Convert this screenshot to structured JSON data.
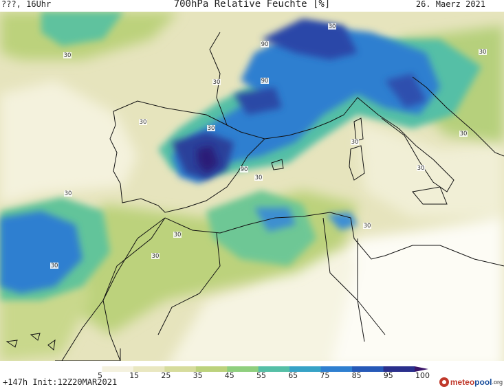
{
  "header": {
    "left": "???, 16Uhr",
    "title": "700hPa Relative Feuchte [%]",
    "date": "26. Maerz 2021"
  },
  "footer": {
    "init": "+147h Init:12Z20MAR2021",
    "logo": {
      "part1": "meteo",
      "part2": "pool",
      "part3": ".org"
    }
  },
  "colorbar": {
    "ticks": [
      "5",
      "15",
      "25",
      "35",
      "45",
      "55",
      "65",
      "75",
      "85",
      "95",
      "100"
    ],
    "colors": [
      "#ffffff",
      "#f4f1de",
      "#e9e7c0",
      "#d6dc9c",
      "#bcd27c",
      "#8fcf7e",
      "#55bfa6",
      "#36a2c6",
      "#2f7fd0",
      "#2659b8",
      "#2a2f8c",
      "#3a1468"
    ]
  },
  "contour_labels": [
    "30",
    "30",
    "90",
    "90",
    "30",
    "30",
    "30",
    "90",
    "30",
    "30",
    "30",
    "30",
    "30",
    "30",
    "30",
    "30",
    "30",
    "30"
  ],
  "colors": {
    "dry": "#fbfaf2",
    "low": "#e9e7c0",
    "mid": "#bcd27c",
    "wet": "#55bfa6",
    "very_wet": "#2f7fd0",
    "max": "#2a2f8c",
    "coast": "#111111"
  }
}
